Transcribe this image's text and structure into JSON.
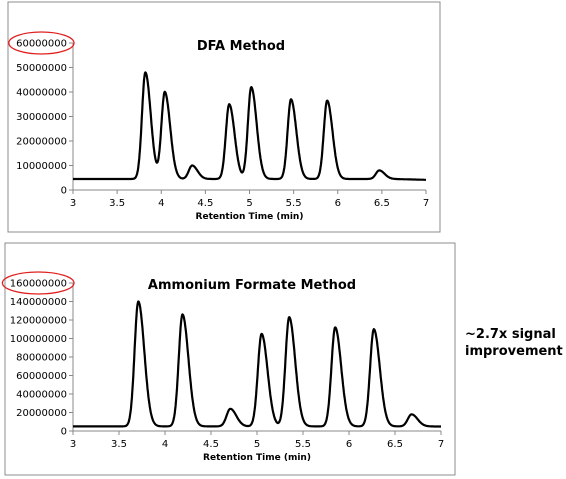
{
  "annotation": {
    "text_line1": "~2.7x signal",
    "text_line2": "improvement",
    "highlight_color": "#e02020"
  },
  "chart_data": [
    {
      "type": "line",
      "title": "DFA Method",
      "xlabel": "Retention Time (min)",
      "ylabel": "",
      "xlim": [
        3,
        7
      ],
      "ylim": [
        0,
        60000000
      ],
      "xticks": [
        "3",
        "3.5",
        "4",
        "4.5",
        "5",
        "5.5",
        "6",
        "6.5",
        "7"
      ],
      "yticks": [
        "0",
        "10000000",
        "20000000",
        "30000000",
        "40000000",
        "50000000",
        "60000000"
      ],
      "highlighted_tick": "60000000",
      "grid": false,
      "legend": "none",
      "series": [
        {
          "baseline": 4500000,
          "peaks": [
            {
              "rt": 3.82,
              "height": 48000000
            },
            {
              "rt": 4.04,
              "height": 40000000
            },
            {
              "rt": 4.35,
              "height": 10000000
            },
            {
              "rt": 4.77,
              "height": 35000000
            },
            {
              "rt": 5.02,
              "height": 42000000
            },
            {
              "rt": 5.47,
              "height": 37000000
            },
            {
              "rt": 5.88,
              "height": 36500000
            },
            {
              "rt": 6.47,
              "height": 8000000
            }
          ]
        }
      ]
    },
    {
      "type": "line",
      "title": "Ammonium Formate Method",
      "xlabel": "Retention Time (min)",
      "ylabel": "",
      "xlim": [
        3,
        7
      ],
      "ylim": [
        0,
        160000000
      ],
      "xticks": [
        "3",
        "3.5",
        "4",
        "4.5",
        "5",
        "5.5",
        "6",
        "6.5",
        "7"
      ],
      "yticks": [
        "0",
        "20000000",
        "40000000",
        "60000000",
        "80000000",
        "100000000",
        "120000000",
        "140000000",
        "160000000"
      ],
      "highlighted_tick": "160000000",
      "grid": false,
      "legend": "none",
      "series": [
        {
          "baseline": 5000000,
          "peaks": [
            {
              "rt": 3.71,
              "height": 140000000
            },
            {
              "rt": 4.19,
              "height": 126000000
            },
            {
              "rt": 4.71,
              "height": 24000000
            },
            {
              "rt": 5.05,
              "height": 105000000
            },
            {
              "rt": 5.35,
              "height": 123000000
            },
            {
              "rt": 5.85,
              "height": 112000000
            },
            {
              "rt": 6.27,
              "height": 110000000
            },
            {
              "rt": 6.68,
              "height": 18000000
            }
          ]
        }
      ]
    }
  ]
}
